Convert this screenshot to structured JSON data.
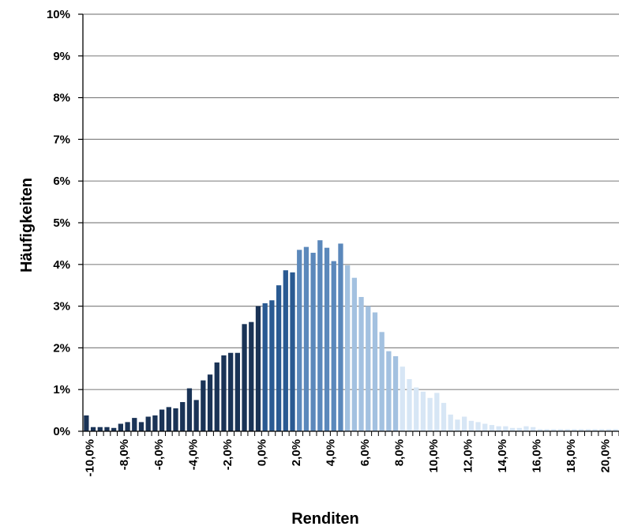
{
  "chart_data": {
    "type": "bar",
    "title": "",
    "xlabel": "Renditen",
    "ylabel": "Häufigkeiten",
    "ylim": [
      0,
      10
    ],
    "grid": true,
    "legend": "none",
    "x_range": [
      -10.4,
      20.8
    ],
    "bin_width": 0.4,
    "colors": {
      "bin_lt_0": "#1a3356",
      "bin_0_to_2": "#2a5a92",
      "bin_2_to_5": "#5b88bb",
      "bin_5_to_8": "#a3c1e0",
      "bin_ge_8": "#d7e6f5",
      "grid": "#888888",
      "axis": "#000000"
    },
    "y_ticks": [
      {
        "value": 0,
        "label": "0%"
      },
      {
        "value": 1,
        "label": "1%"
      },
      {
        "value": 2,
        "label": "2%"
      },
      {
        "value": 3,
        "label": "3%"
      },
      {
        "value": 4,
        "label": "4%"
      },
      {
        "value": 5,
        "label": "5%"
      },
      {
        "value": 6,
        "label": "6%"
      },
      {
        "value": 7,
        "label": "7%"
      },
      {
        "value": 8,
        "label": "8%"
      },
      {
        "value": 9,
        "label": "9%"
      },
      {
        "value": 10,
        "label": "10%"
      }
    ],
    "x_ticks": [
      {
        "value": -10,
        "label": "-10,0%"
      },
      {
        "value": -8,
        "label": "-8,0%"
      },
      {
        "value": -6,
        "label": "-6,0%"
      },
      {
        "value": -4,
        "label": "-4,0%"
      },
      {
        "value": -2,
        "label": "-2,0%"
      },
      {
        "value": 0,
        "label": "0,0%"
      },
      {
        "value": 2,
        "label": "2,0%"
      },
      {
        "value": 4,
        "label": "4,0%"
      },
      {
        "value": 6,
        "label": "6,0%"
      },
      {
        "value": 8,
        "label": "8,0%"
      },
      {
        "value": 10,
        "label": "10,0%"
      },
      {
        "value": 12,
        "label": "12,0%"
      },
      {
        "value": 14,
        "label": "14,0%"
      },
      {
        "value": 16,
        "label": "16,0%"
      },
      {
        "value": 18,
        "label": "18,0%"
      },
      {
        "value": 20,
        "label": "20,0%"
      }
    ],
    "x": [
      -10.2,
      -9.8,
      -9.4,
      -9.0,
      -8.6,
      -8.2,
      -7.8,
      -7.4,
      -7.0,
      -6.6,
      -6.2,
      -5.8,
      -5.4,
      -5.0,
      -4.6,
      -4.2,
      -3.8,
      -3.4,
      -3.0,
      -2.6,
      -2.2,
      -1.8,
      -1.4,
      -1.0,
      -0.6,
      -0.2,
      0.2,
      0.6,
      1.0,
      1.4,
      1.8,
      2.2,
      2.6,
      3.0,
      3.4,
      3.8,
      4.2,
      4.6,
      5.0,
      5.4,
      5.8,
      6.2,
      6.6,
      7.0,
      7.4,
      7.8,
      8.2,
      8.6,
      9.0,
      9.4,
      9.8,
      10.2,
      10.6,
      11.0,
      11.4,
      11.8,
      12.2,
      12.6,
      13.0,
      13.4,
      13.8,
      14.2,
      14.6,
      15.0,
      15.4,
      15.8,
      16.2,
      16.6,
      17.0,
      17.4,
      17.8,
      18.2,
      18.6,
      19.0,
      19.4,
      19.8,
      20.2,
      20.6
    ],
    "values": [
      0.38,
      0.1,
      0.1,
      0.1,
      0.08,
      0.18,
      0.22,
      0.32,
      0.22,
      0.35,
      0.38,
      0.52,
      0.58,
      0.55,
      0.7,
      1.03,
      0.75,
      1.22,
      1.36,
      1.65,
      1.82,
      1.88,
      1.88,
      2.57,
      2.62,
      3.0,
      3.07,
      3.14,
      3.5,
      3.86,
      3.81,
      4.35,
      4.42,
      4.28,
      4.58,
      4.4,
      4.08,
      4.5,
      3.98,
      3.68,
      3.22,
      3.0,
      2.85,
      2.38,
      1.92,
      1.8,
      1.55,
      1.25,
      1.05,
      0.95,
      0.8,
      0.92,
      0.68,
      0.4,
      0.28,
      0.35,
      0.25,
      0.22,
      0.18,
      0.15,
      0.12,
      0.12,
      0.08,
      0.08,
      0.12,
      0.1,
      0.05,
      0.05,
      0.05,
      0.05,
      0.05,
      0.05,
      0.05,
      0.05,
      0.05,
      0.05,
      0.05,
      0.05
    ]
  }
}
